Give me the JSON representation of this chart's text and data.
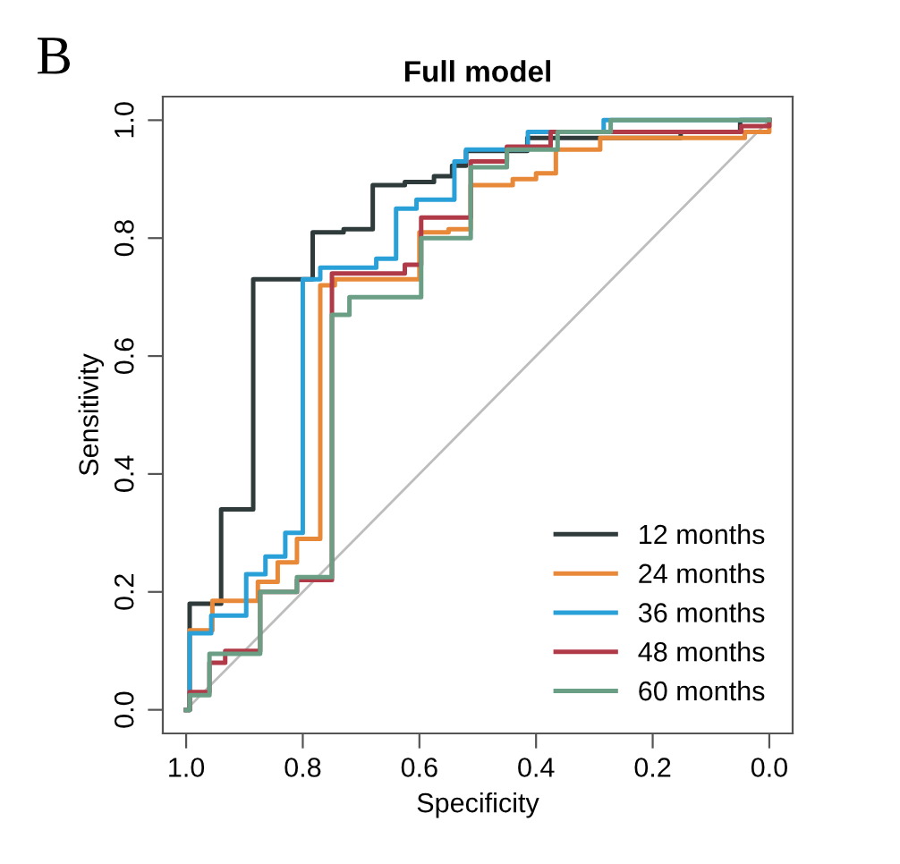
{
  "chart_data": {
    "type": "step",
    "title": "Full model",
    "xlabel": "Specificity",
    "ylabel": "Sensitivity",
    "annotations": [
      "B"
    ],
    "xlim": [
      1.04,
      -0.04
    ],
    "ylim": [
      -0.04,
      1.04
    ],
    "xticks": [
      {
        "value": 1.0,
        "label": "1.0"
      },
      {
        "value": 0.8,
        "label": "0.8"
      },
      {
        "value": 0.6,
        "label": "0.6"
      },
      {
        "value": 0.4,
        "label": "0.4"
      },
      {
        "value": 0.2,
        "label": "0.2"
      },
      {
        "value": 0.0,
        "label": "0.0"
      }
    ],
    "yticks": [
      {
        "value": 0.0,
        "label": "0.0"
      },
      {
        "value": 0.2,
        "label": "0.2"
      },
      {
        "value": 0.4,
        "label": "0.4"
      },
      {
        "value": 0.6,
        "label": "0.6"
      },
      {
        "value": 0.8,
        "label": "0.8"
      },
      {
        "value": 1.0,
        "label": "1.0"
      }
    ],
    "grid": false,
    "legend": "bottom right",
    "line_style": "solid",
    "marker": "none",
    "series": [
      {
        "type": "line",
        "color": "#bdbdbd",
        "x": [
          1,
          0
        ],
        "values": [
          0,
          1
        ]
      },
      {
        "name": "12 months",
        "color": "#2f3b3b",
        "x": [
          1,
          0.994,
          0.94,
          0.885,
          0.783,
          0.73,
          0.68,
          0.625,
          0.575,
          0.544,
          0.52,
          0.415,
          0.152,
          0.05,
          0
        ],
        "values": [
          0,
          0.18,
          0.34,
          0.73,
          0.81,
          0.815,
          0.89,
          0.895,
          0.905,
          0.923,
          0.948,
          0.97,
          0.98,
          1.0,
          1.0
        ]
      },
      {
        "name": "24 months",
        "color": "#e8893a",
        "x": [
          1,
          0.994,
          0.955,
          0.877,
          0.843,
          0.81,
          0.77,
          0.745,
          0.6,
          0.55,
          0.512,
          0.44,
          0.4,
          0.366,
          0.29,
          0.042,
          0
        ],
        "values": [
          0,
          0.135,
          0.185,
          0.217,
          0.25,
          0.29,
          0.72,
          0.73,
          0.81,
          0.815,
          0.89,
          0.9,
          0.91,
          0.95,
          0.97,
          0.98,
          1.0
        ]
      },
      {
        "name": "36 months",
        "color": "#2aa0d8",
        "x": [
          1,
          0.994,
          0.957,
          0.897,
          0.864,
          0.83,
          0.8,
          0.77,
          0.674,
          0.64,
          0.605,
          0.54,
          0.52,
          0.414,
          0.284,
          0
        ],
        "values": [
          0,
          0.13,
          0.16,
          0.23,
          0.26,
          0.3,
          0.73,
          0.75,
          0.765,
          0.85,
          0.865,
          0.93,
          0.95,
          0.98,
          1.0,
          1.0
        ]
      },
      {
        "name": "48 months",
        "color": "#b03a48",
        "x": [
          1,
          0.994,
          0.96,
          0.933,
          0.873,
          0.81,
          0.75,
          0.625,
          0.597,
          0.512,
          0.45,
          0.375,
          0.048,
          0
        ],
        "values": [
          0,
          0.03,
          0.08,
          0.1,
          0.2,
          0.22,
          0.74,
          0.755,
          0.835,
          0.93,
          0.955,
          0.98,
          0.99,
          1.0
        ]
      },
      {
        "name": "60 months",
        "color": "#6a9e85",
        "x": [
          1,
          0.994,
          0.96,
          0.873,
          0.81,
          0.75,
          0.72,
          0.597,
          0.512,
          0.45,
          0.363,
          0.272,
          0
        ],
        "values": [
          0,
          0.025,
          0.095,
          0.2,
          0.225,
          0.67,
          0.7,
          0.8,
          0.92,
          0.95,
          0.98,
          1.0,
          1.0
        ]
      }
    ]
  }
}
